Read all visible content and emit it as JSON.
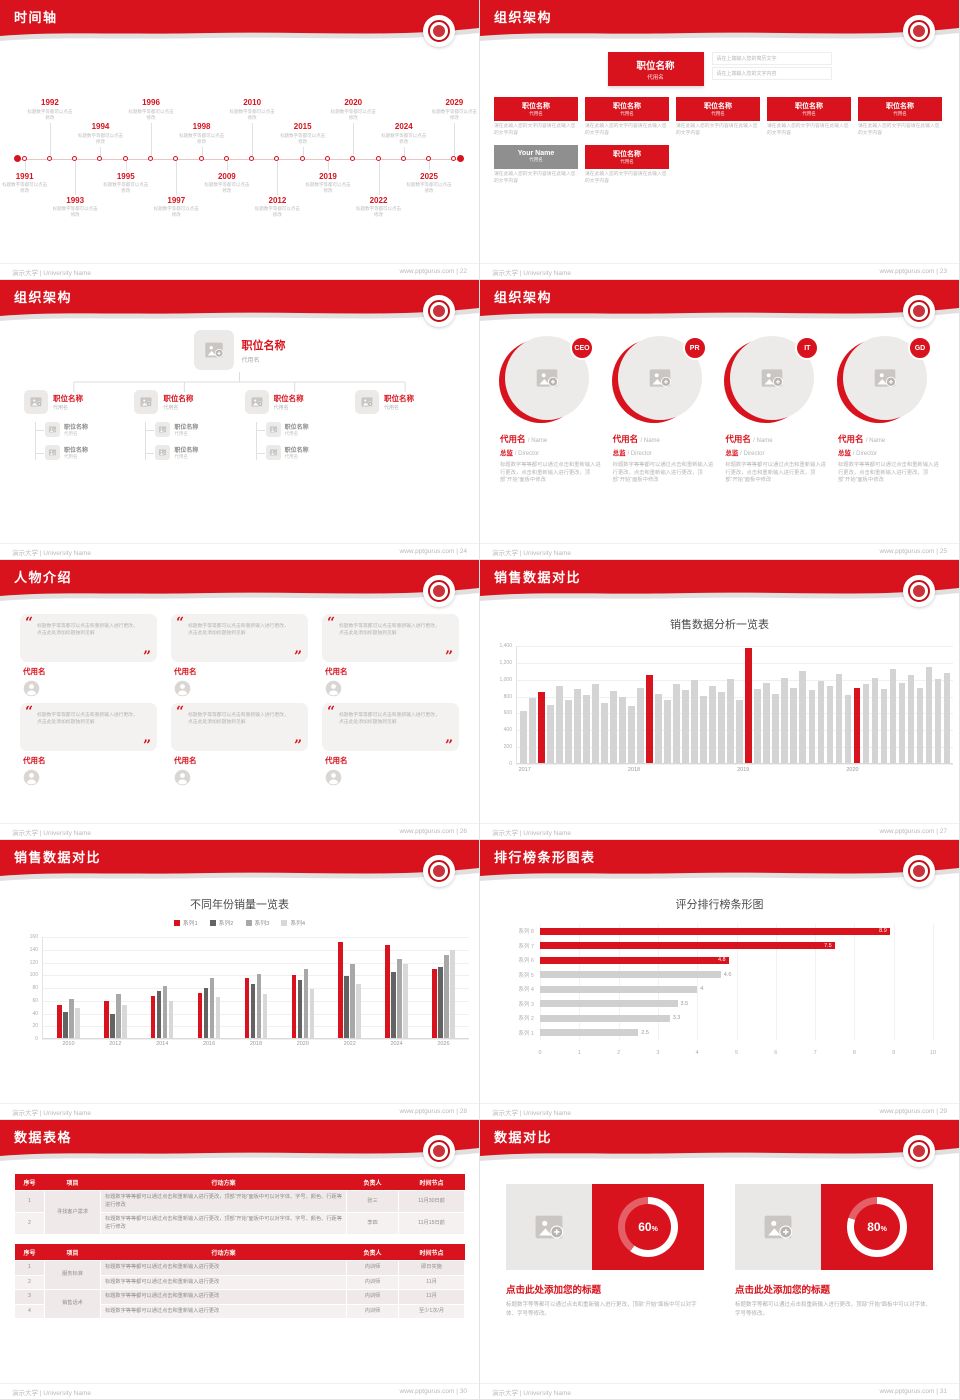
{
  "meta": {
    "university_footer": "演示大学 | University Name",
    "site": "www.pptgurus.com",
    "accent": "#d8131d"
  },
  "slides": {
    "s22": {
      "title": "时间轴",
      "page": "22",
      "caption": "标题数字等都可以点击修改",
      "events_top": [
        "1992",
        "1994",
        "1996",
        "1998",
        "2010",
        "2015",
        "2020",
        "2024",
        "2029"
      ],
      "events_bottom": [
        "1991",
        "1993",
        "1995",
        "1997",
        "2009",
        "2012",
        "2019",
        "2022",
        "2025"
      ]
    },
    "s23": {
      "title": "组织架构",
      "page": "23",
      "root_name": "职位名称",
      "root_alias": "代用名",
      "note_lines": [
        "请在上端输入您的简历文字",
        "请在上端输入您的文字内容"
      ],
      "node_name": "职位名称",
      "node_alias": "代用名",
      "node_text": "请在此输入您的文字内容请在此输入您的文字内容",
      "gray_name": "Your Name",
      "gray_alias": "代用名"
    },
    "s24": {
      "title": "组织架构",
      "page": "24",
      "root_name": "职位名称",
      "root_alias": "代用名",
      "node_name": "职位名称",
      "node_alias": "代用名"
    },
    "s25": {
      "title": "组织架构",
      "page": "25",
      "badges": [
        "CEO",
        "PR",
        "IT",
        "GD"
      ],
      "name": "代用名",
      "name_suffix": "/ Name",
      "role": "总监",
      "role_suffix": "/ Director",
      "body": "标题数字等等都可以通过点击和重新输入进行更改，点击和重新输入进行更改，顶部“开始”面板中修改"
    },
    "s26": {
      "title": "人物介绍",
      "page": "26",
      "count": 6,
      "quote": "标题数字等等都可以点击和重新输入进行更改，点击此处添加标题独到见解",
      "name": "代用名"
    },
    "s27": {
      "title": "销售数据对比",
      "page": "27"
    },
    "s28": {
      "title": "销售数据对比",
      "page": "28"
    },
    "s29": {
      "title": "排行榜条形图表",
      "page": "29"
    },
    "s30": {
      "title": "数据表格",
      "page": "30",
      "headers": [
        "序号",
        "项目",
        "行动方案",
        "负责人",
        "时间节点"
      ],
      "table1": {
        "group": "寻找客户需求",
        "rows": [
          {
            "no": "1",
            "plan": "标题数字等等都可以通过点击和重新输入进行更改，顶部“开始”面板中可以对字体、字号、颜色、行距等进行修改",
            "owner": "张三",
            "time": "11月30日前"
          },
          {
            "no": "2",
            "plan": "标题数字等等都可以通过点击和重新输入进行更改，顶部“开始”面板中可以对字体、字号、颜色、行距等进行修改",
            "owner": "李四",
            "time": "11月15日前"
          }
        ]
      },
      "table2": {
        "groups": [
          {
            "name": "服务标准",
            "rows": [
              {
                "no": "1",
                "plan": "标题数字等等都可以通过点击和重新输入进行更改",
                "owner": "内训师",
                "time": "即日实施"
              },
              {
                "no": "2",
                "plan": "标题数字等等都可以通过点击和重新输入进行更改",
                "owner": "内训师",
                "time": "11月"
              }
            ]
          },
          {
            "name": "销售话术",
            "rows": [
              {
                "no": "3",
                "plan": "标题数字等等都可以通过点击和重新输入进行更改",
                "owner": "内训师",
                "time": "11月"
              },
              {
                "no": "4",
                "plan": "标题数字等等都可以通过点击和重新输入进行更改",
                "owner": "内训师",
                "time": "至少1次/月"
              }
            ]
          }
        ]
      }
    },
    "s31": {
      "title": "数据对比",
      "page": "31",
      "units": [
        {
          "percent": 60,
          "title": "点击此处添加您的标题",
          "body": "标题数字等等都可以通过点击和重新输入进行更改，顶部“开始”面板中可以对字体、字号等修改。"
        },
        {
          "percent": 80,
          "title": "点击此处添加您的标题",
          "body": "标题数字等都可以通过点击和重新输入进行更改，顶部“开始”面板中可以对字体、字号等修改。"
        }
      ]
    }
  },
  "chart_data": [
    {
      "slide": "27",
      "type": "bar",
      "title": "销售数据分析一览表",
      "x_group_labels": [
        "2017",
        "2018",
        "2019",
        "2020"
      ],
      "group_starts": [
        0,
        12,
        24,
        36
      ],
      "values": [
        620,
        780,
        850,
        700,
        920,
        760,
        880,
        810,
        950,
        720,
        860,
        790,
        680,
        900,
        1050,
        820,
        760,
        940,
        870,
        990,
        800,
        920,
        850,
        1010,
        760,
        1380,
        890,
        960,
        830,
        1020,
        900,
        1100,
        870,
        980,
        920,
        1060,
        810,
        900,
        950,
        1020,
        880,
        1120,
        960,
        1050,
        900,
        1150,
        1000,
        1080
      ],
      "highlight_indices": [
        2,
        14,
        25,
        37
      ],
      "ylim": [
        0,
        1400
      ],
      "yticks": [
        "1,400",
        "1,200",
        "1,000",
        "800",
        "600",
        "400",
        "200",
        "0"
      ],
      "bar_color": "#d4d4d4",
      "highlight_color": "#d8131d",
      "xlabel": "",
      "ylabel": ""
    },
    {
      "slide": "28",
      "type": "bar",
      "title": "不同年份销量一览表",
      "categories": [
        "2010",
        "2012",
        "2014",
        "2016",
        "2018",
        "2020",
        "2022",
        "2024",
        "2026"
      ],
      "series": [
        {
          "name": "系列1",
          "color": "#d8131d",
          "values": [
            52,
            58,
            66,
            72,
            95,
            100,
            152,
            148,
            110
          ]
        },
        {
          "name": "系列2",
          "color": "#636363",
          "values": [
            42,
            38,
            75,
            80,
            85,
            92,
            98,
            105,
            112
          ]
        },
        {
          "name": "系列3",
          "color": "#a8a8a8",
          "values": [
            62,
            70,
            82,
            95,
            102,
            110,
            118,
            125,
            132
          ]
        },
        {
          "name": "系列4",
          "color": "#d8d8d8",
          "values": [
            48,
            52,
            58,
            65,
            70,
            78,
            85,
            118,
            140
          ]
        }
      ],
      "ylim": [
        0,
        160
      ],
      "yticks": [
        "160",
        "140",
        "120",
        "100",
        "80",
        "60",
        "40",
        "20",
        "0"
      ],
      "legend_position": "top",
      "xlabel": "",
      "ylabel": ""
    },
    {
      "slide": "29",
      "type": "bar",
      "orientation": "horizontal",
      "title": "评分排行榜条形图",
      "categories": [
        "系列 8",
        "系列 7",
        "系列 6",
        "系列 5",
        "系列 4",
        "系列 3",
        "系列 2",
        "系列 1"
      ],
      "values": [
        8.9,
        7.5,
        4.8,
        4.6,
        4,
        3.5,
        3.3,
        2.5
      ],
      "red_count": 3,
      "xlim": [
        0,
        10
      ],
      "xticks": [
        "0",
        "1",
        "2",
        "3",
        "4",
        "5",
        "6",
        "7",
        "8",
        "9",
        "10"
      ],
      "bar_color": "#d0d0d0",
      "highlight_color": "#d8131d",
      "xlabel": "",
      "ylabel": ""
    }
  ]
}
